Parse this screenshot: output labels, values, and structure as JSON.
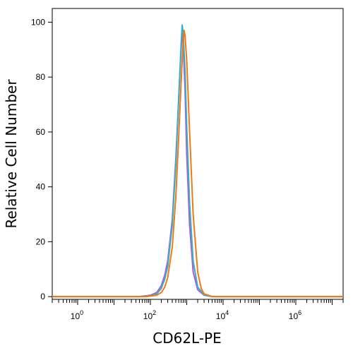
{
  "chart_data": {
    "type": "line",
    "xlabel": "CD62L-PE",
    "ylabel": "Relative Cell Number",
    "xscale": "log",
    "xlim": [
      0.2,
      20000000
    ],
    "ylim": [
      -1,
      105
    ],
    "y_ticks": [
      0,
      20,
      40,
      60,
      80,
      100
    ],
    "y_tick_labels": [
      "0",
      "20",
      "40",
      "60",
      "80",
      "100"
    ],
    "x_major_ticks": [
      1,
      100,
      10000,
      1000000
    ],
    "x_tick_labels": [
      {
        "base": "10",
        "exp": "0"
      },
      {
        "base": "10",
        "exp": "2"
      },
      {
        "base": "10",
        "exp": "4"
      },
      {
        "base": "10",
        "exp": "6"
      }
    ],
    "grid": false,
    "legend": "none",
    "series": [
      {
        "color": "#b05ad0",
        "x": [
          0.2,
          50,
          100,
          150,
          200,
          250,
          300,
          400,
          500,
          600,
          700,
          750,
          800,
          900,
          1000,
          1200,
          1500,
          2000,
          3000,
          5000,
          20000000
        ],
        "y": [
          0,
          0,
          0.5,
          1.5,
          4,
          8,
          13,
          28,
          50,
          72,
          90,
          96,
          92,
          75,
          52,
          26,
          9,
          2.5,
          0.5,
          0,
          0
        ]
      },
      {
        "color": "#33b0d0",
        "x": [
          0.2,
          50,
          100,
          150,
          200,
          250,
          300,
          400,
          500,
          600,
          700,
          750,
          800,
          900,
          1000,
          1200,
          1500,
          2000,
          3000,
          5000,
          20000000
        ],
        "y": [
          0,
          0,
          0.3,
          1,
          3,
          6.5,
          11,
          26,
          48,
          72,
          92,
          99,
          96,
          82,
          62,
          34,
          13,
          3.5,
          0.6,
          0,
          0
        ]
      },
      {
        "color": "#f07a10",
        "x": [
          0.2,
          80,
          150,
          200,
          250,
          300,
          400,
          500,
          600,
          700,
          800,
          850,
          900,
          1000,
          1200,
          1500,
          2000,
          2500,
          3000,
          5000,
          20000000
        ],
        "y": [
          0,
          0,
          0.5,
          1.5,
          3.5,
          7,
          18,
          36,
          58,
          78,
          93,
          97,
          95,
          86,
          60,
          30,
          9,
          3,
          1,
          0,
          0
        ]
      }
    ]
  }
}
